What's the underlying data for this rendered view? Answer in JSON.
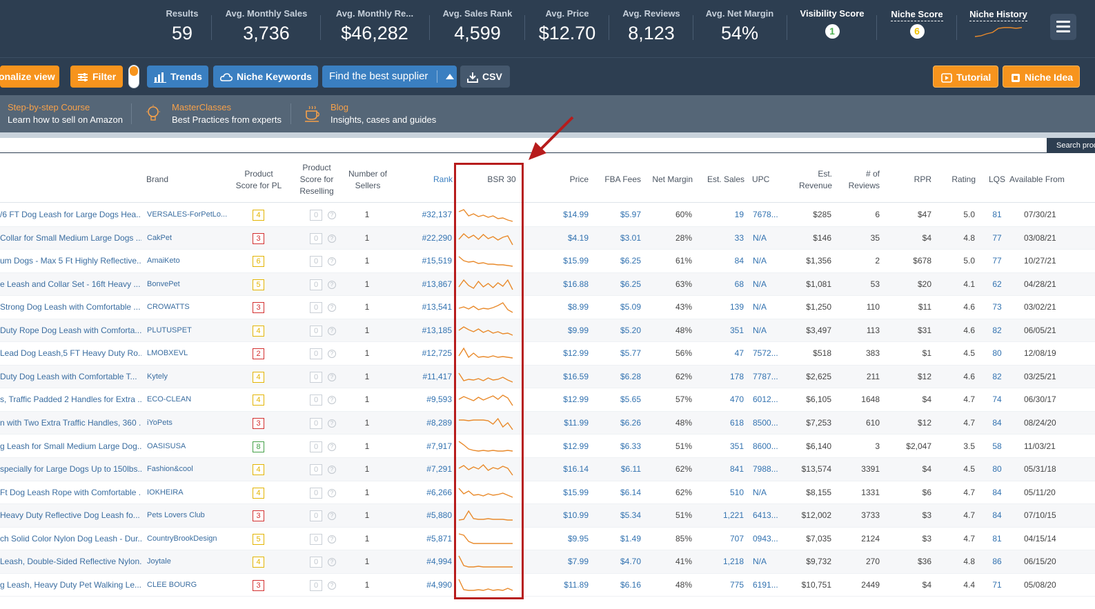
{
  "stats": {
    "results": {
      "label": "Results",
      "value": "59"
    },
    "monthly_sales": {
      "label": "Avg. Monthly Sales",
      "value": "3,736"
    },
    "monthly_revenue": {
      "label": "Avg. Monthly Re...",
      "value": "$46,282"
    },
    "sales_rank": {
      "label": "Avg. Sales Rank",
      "value": "4,599"
    },
    "price": {
      "label": "Avg. Price",
      "value": "$12.70"
    },
    "reviews": {
      "label": "Avg. Reviews",
      "value": "8,123"
    },
    "net_margin": {
      "label": "Avg. Net Margin",
      "value": "54%"
    },
    "visibility": {
      "label": "Visibility Score",
      "value": "1",
      "color": "#4caf50"
    },
    "niche_score": {
      "label": "Niche Score",
      "value": "6",
      "color": "#f2c300"
    },
    "niche_history": {
      "label": "Niche History",
      "trend": [
        18,
        17,
        14,
        12,
        6,
        5,
        5,
        6,
        5
      ]
    }
  },
  "toolbar": {
    "personalize_label": "onalize view",
    "filter_label": "Filter",
    "trends_label": "Trends",
    "niche_keywords_label": "Niche Keywords",
    "supplier_label": "Find the best supplier",
    "csv_label": "CSV",
    "tutorial_label": "Tutorial",
    "niche_idea_label": "Niche Idea"
  },
  "edu": {
    "course": {
      "title": "Step-by-step Course",
      "subtitle": "Learn how to sell on Amazon"
    },
    "master": {
      "title": "MasterClasses",
      "subtitle": "Best Practices from experts"
    },
    "blog": {
      "title": "Blog",
      "subtitle": "Insights, cases and guides"
    }
  },
  "search_button": "Search prod",
  "headers": {
    "brand": "Brand",
    "pl1": "Product",
    "pl2": "Score for PL",
    "rs1": "Product",
    "rs2": "Score for",
    "rs3": "Reselling",
    "sellers1": "Number of",
    "sellers2": "Sellers",
    "rank": "Rank",
    "bsr": "BSR 30",
    "price": "Price",
    "fba": "FBA Fees",
    "margin": "Net Margin",
    "sales": "Est. Sales",
    "upc": "UPC",
    "rev1": "Est.",
    "rev2": "Revenue",
    "reviews1": "# of",
    "reviews2": "Reviews",
    "rpr": "RPR",
    "rating": "Rating",
    "lqs": "LQS",
    "avail": "Available From"
  },
  "rows": [
    {
      "title": "/6 FT Dog Leash for Large Dogs Hea...",
      "brand": "VERSALES-ForPetLo...",
      "pl": "4",
      "pl_color": "#e3b400",
      "rs": "0",
      "sellers": "1",
      "rank": "#32,137",
      "bsr": [
        6,
        3,
        12,
        9,
        13,
        11,
        14,
        12,
        16,
        15,
        18,
        20
      ],
      "price": "$14.99",
      "fba": "$5.97",
      "margin": "60%",
      "sales": "19",
      "upc": "7678...",
      "revenue": "$285",
      "reviews": "6",
      "rpr": "$47",
      "rating": "5.0",
      "lqs": "81",
      "avail": "07/30/21"
    },
    {
      "title": "Collar for Small Medium Large Dogs ...",
      "brand": "CakPet",
      "pl": "3",
      "pl_color": "#d32f2f",
      "rs": "0",
      "sellers": "1",
      "rank": "#22,290",
      "bsr": [
        12,
        4,
        10,
        6,
        12,
        5,
        11,
        8,
        13,
        9,
        7,
        20
      ],
      "price": "$4.19",
      "fba": "$3.01",
      "margin": "28%",
      "sales": "33",
      "upc": "N/A",
      "revenue": "$146",
      "reviews": "35",
      "rpr": "$4",
      "rating": "4.8",
      "lqs": "77",
      "avail": "03/08/21"
    },
    {
      "title": "um Dogs - Max 5 Ft Highly Reflective...",
      "brand": "AmaiKeto",
      "pl": "6",
      "pl_color": "#e3b400",
      "rs": "0",
      "sellers": "1",
      "rank": "#15,519",
      "bsr": [
        4,
        10,
        12,
        11,
        14,
        13,
        15,
        15,
        16,
        16,
        17,
        18
      ],
      "price": "$15.99",
      "fba": "$6.25",
      "margin": "61%",
      "sales": "84",
      "upc": "N/A",
      "revenue": "$1,356",
      "reviews": "2",
      "rpr": "$678",
      "rating": "5.0",
      "lqs": "77",
      "avail": "10/27/21"
    },
    {
      "title": "e Leash and Collar Set - 16ft Heavy ...",
      "brand": "BonvePet",
      "pl": "5",
      "pl_color": "#e3b400",
      "rs": "0",
      "sellers": "1",
      "rank": "#13,867",
      "bsr": [
        14,
        4,
        12,
        16,
        6,
        14,
        9,
        15,
        8,
        13,
        4,
        18
      ],
      "price": "$16.88",
      "fba": "$6.25",
      "margin": "63%",
      "sales": "68",
      "upc": "N/A",
      "revenue": "$1,081",
      "reviews": "53",
      "rpr": "$20",
      "rating": "4.1",
      "lqs": "62",
      "avail": "04/28/21"
    },
    {
      "title": "Strong Dog Leash with Comfortable ...",
      "brand": "CROWATTS",
      "pl": "3",
      "pl_color": "#d32f2f",
      "rs": "0",
      "sellers": "1",
      "rank": "#13,541",
      "bsr": [
        12,
        10,
        13,
        9,
        14,
        12,
        13,
        11,
        8,
        4,
        14,
        18
      ],
      "price": "$8.99",
      "fba": "$5.09",
      "margin": "43%",
      "sales": "139",
      "upc": "N/A",
      "revenue": "$1,250",
      "reviews": "110",
      "rpr": "$11",
      "rating": "4.6",
      "lqs": "73",
      "avail": "03/02/21"
    },
    {
      "title": "Duty Rope Dog Leash with Comforta...",
      "brand": "PLUTUSPET",
      "pl": "4",
      "pl_color": "#e3b400",
      "rs": "0",
      "sellers": "1",
      "rank": "#13,185",
      "bsr": [
        10,
        5,
        9,
        12,
        8,
        13,
        10,
        14,
        12,
        15,
        14,
        17
      ],
      "price": "$9.99",
      "fba": "$5.20",
      "margin": "48%",
      "sales": "351",
      "upc": "N/A",
      "revenue": "$3,497",
      "reviews": "113",
      "rpr": "$31",
      "rating": "4.6",
      "lqs": "82",
      "avail": "06/05/21"
    },
    {
      "title": "Lead Dog Leash,5 FT Heavy Duty Ro...",
      "brand": "LMOBXEVL",
      "pl": "2",
      "pl_color": "#d32f2f",
      "rs": "0",
      "sellers": "1",
      "rank": "#12,725",
      "bsr": [
        14,
        3,
        16,
        10,
        16,
        15,
        16,
        14,
        16,
        15,
        16,
        17
      ],
      "price": "$12.99",
      "fba": "$5.77",
      "margin": "56%",
      "sales": "47",
      "upc": "7572...",
      "revenue": "$518",
      "reviews": "383",
      "rpr": "$1",
      "rating": "4.5",
      "lqs": "80",
      "avail": "12/08/19"
    },
    {
      "title": "Duty Dog Leash with Comfortable T...",
      "brand": "Kytely",
      "pl": "4",
      "pl_color": "#e3b400",
      "rs": "0",
      "sellers": "1",
      "rank": "#11,417",
      "bsr": [
        5,
        16,
        14,
        15,
        13,
        16,
        12,
        15,
        14,
        11,
        15,
        18
      ],
      "price": "$16.59",
      "fba": "$6.28",
      "margin": "62%",
      "sales": "178",
      "upc": "7787...",
      "revenue": "$2,625",
      "reviews": "211",
      "rpr": "$12",
      "rating": "4.6",
      "lqs": "82",
      "avail": "03/25/21"
    },
    {
      "title": "s, Traffic Padded 2 Handles for Extra ...",
      "brand": "ECO-CLEAN",
      "pl": "4",
      "pl_color": "#e3b400",
      "rs": "0",
      "sellers": "1",
      "rank": "#9,593",
      "bsr": [
        10,
        6,
        9,
        12,
        7,
        11,
        8,
        5,
        10,
        4,
        8,
        19
      ],
      "price": "$12.99",
      "fba": "$5.65",
      "margin": "57%",
      "sales": "470",
      "upc": "6012...",
      "revenue": "$6,105",
      "reviews": "1648",
      "rpr": "$4",
      "rating": "4.7",
      "lqs": "74",
      "avail": "06/30/17"
    },
    {
      "title": "n with Two Extra Traffic Handles, 360 ...",
      "brand": "iYoPets",
      "pl": "3",
      "pl_color": "#d32f2f",
      "rs": "0",
      "sellers": "1",
      "rank": "#8,289",
      "bsr": [
        6,
        6,
        7,
        6,
        6,
        6,
        7,
        12,
        4,
        16,
        10,
        20
      ],
      "price": "$11.99",
      "fba": "$6.26",
      "margin": "48%",
      "sales": "618",
      "upc": "8500...",
      "revenue": "$7,253",
      "reviews": "610",
      "rpr": "$12",
      "rating": "4.7",
      "lqs": "84",
      "avail": "08/24/20"
    },
    {
      "title": "g Leash for Small Medium Large Dog...",
      "brand": "OASISUSA",
      "pl": "8",
      "pl_color": "#43a047",
      "rs": "0",
      "sellers": "1",
      "rank": "#7,917",
      "bsr": [
        3,
        8,
        14,
        16,
        17,
        16,
        17,
        16,
        17,
        17,
        16,
        17
      ],
      "price": "$12.99",
      "fba": "$6.33",
      "margin": "51%",
      "sales": "351",
      "upc": "8600...",
      "revenue": "$6,140",
      "reviews": "3",
      "rpr": "$2,047",
      "rating": "3.5",
      "lqs": "58",
      "avail": "11/03/21"
    },
    {
      "title": "specially for Large Dogs Up to 150lbs...",
      "brand": "Fashion&cool",
      "pl": "4",
      "pl_color": "#e3b400",
      "rs": "0",
      "sellers": "1",
      "rank": "#7,291",
      "bsr": [
        9,
        5,
        11,
        7,
        10,
        4,
        12,
        8,
        10,
        6,
        9,
        19
      ],
      "price": "$16.14",
      "fba": "$6.11",
      "margin": "62%",
      "sales": "841",
      "upc": "7988...",
      "revenue": "$13,574",
      "reviews": "3391",
      "rpr": "$4",
      "rating": "4.5",
      "lqs": "80",
      "avail": "05/31/18"
    },
    {
      "title": "Ft Dog Leash Rope with Comfortable ...",
      "brand": "IOKHEIRA",
      "pl": "4",
      "pl_color": "#e3b400",
      "rs": "0",
      "sellers": "1",
      "rank": "#6,266",
      "bsr": [
        4,
        12,
        8,
        14,
        13,
        15,
        12,
        14,
        13,
        11,
        14,
        17
      ],
      "price": "$15.99",
      "fba": "$6.14",
      "margin": "62%",
      "sales": "510",
      "upc": "N/A",
      "revenue": "$8,155",
      "reviews": "1331",
      "rpr": "$6",
      "rating": "4.7",
      "lqs": "84",
      "avail": "05/11/20"
    },
    {
      "title": "Heavy Duty Reflective Dog Leash fo...",
      "brand": "Pets Lovers Club",
      "pl": "3",
      "pl_color": "#d32f2f",
      "rs": "0",
      "sellers": "1",
      "rank": "#5,880",
      "bsr": [
        17,
        16,
        4,
        15,
        16,
        16,
        15,
        16,
        16,
        16,
        17,
        17
      ],
      "price": "$10.99",
      "fba": "$5.34",
      "margin": "51%",
      "sales": "1,221",
      "upc": "6413...",
      "revenue": "$12,002",
      "reviews": "3733",
      "rpr": "$3",
      "rating": "4.7",
      "lqs": "84",
      "avail": "07/10/15"
    },
    {
      "title": "ch Solid Color Nylon Dog Leash - Dur...",
      "brand": "CountryBrookDesign",
      "pl": "5",
      "pl_color": "#e3b400",
      "rs": "0",
      "sellers": "1",
      "rank": "#5,871",
      "bsr": [
        3,
        5,
        14,
        17,
        17,
        17,
        17,
        17,
        17,
        17,
        17,
        17
      ],
      "price": "$9.95",
      "fba": "$1.49",
      "margin": "85%",
      "sales": "707",
      "upc": "0943...",
      "revenue": "$7,035",
      "reviews": "2124",
      "rpr": "$3",
      "rating": "4.7",
      "lqs": "81",
      "avail": "04/15/14"
    },
    {
      "title": "Leash, Double-Sided Reflective Nylon...",
      "brand": "Joytale",
      "pl": "4",
      "pl_color": "#e3b400",
      "rs": "0",
      "sellers": "1",
      "rank": "#4,994",
      "bsr": [
        2,
        16,
        18,
        18,
        17,
        18,
        18,
        18,
        18,
        18,
        18,
        18
      ],
      "price": "$7.99",
      "fba": "$4.70",
      "margin": "41%",
      "sales": "1,218",
      "upc": "N/A",
      "revenue": "$9,732",
      "reviews": "270",
      "rpr": "$36",
      "rating": "4.8",
      "lqs": "86",
      "avail": "06/15/20"
    },
    {
      "title": "g Leash, Heavy Duty Pet Walking Le...",
      "brand": "CLEE BOURG",
      "pl": "3",
      "pl_color": "#d32f2f",
      "rs": "0",
      "sellers": "1",
      "rank": "#4,990",
      "bsr": [
        2,
        17,
        18,
        18,
        17,
        18,
        16,
        18,
        17,
        18,
        15,
        18
      ],
      "price": "$11.89",
      "fba": "$6.16",
      "margin": "48%",
      "sales": "775",
      "upc": "6191...",
      "revenue": "$10,751",
      "reviews": "2449",
      "rpr": "$4",
      "rating": "4.4",
      "lqs": "71",
      "avail": "05/08/20"
    }
  ],
  "colors": {
    "accent": "#f7941d",
    "header_bg": "#2d3e51",
    "highlight": "#b71c1c",
    "spark": "#e98a2b"
  }
}
